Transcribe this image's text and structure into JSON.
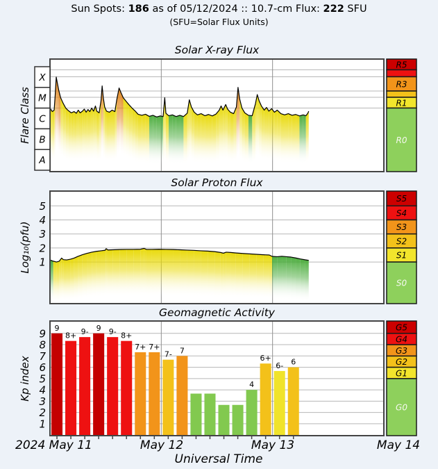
{
  "header": {
    "line1_prefix": "Sun Spots: ",
    "sunspots": "186",
    "line1_mid": " as of 05/12/2024 :: 10.7-cm Flux: ",
    "flux": "222",
    "line1_suffix": " SFU",
    "line2": "(SFU=Solar Flux Units)"
  },
  "time_axis": {
    "labels": [
      {
        "text": "2024 May 11"
      },
      {
        "text": "May 12"
      },
      {
        "text": "May 13"
      },
      {
        "text": "May 14"
      }
    ],
    "axis_label": "Universal Time",
    "hours_total": 72,
    "day_line_hours": [
      24,
      48
    ]
  },
  "colors": {
    "background": "#edf2f8",
    "plot_bg": "#ffffff",
    "border": "#444444",
    "grid": "#b7b7b7",
    "day_line": "#909090",
    "text": "#000000",
    "levels": {
      "5": "#cc0000",
      "4": "#ee1111",
      "3": "#f2941a",
      "2": "#f3c11a",
      "1": "#f2e52c",
      "0": "#8ed05c"
    },
    "bar_palette": {
      "g5": "#c40000",
      "g4": "#ee1111",
      "g3": "#f2941a",
      "g2": "#f3c11a",
      "g1": "#f0e32b",
      "g0": "#82c94f"
    },
    "fill_green": "#46aa37",
    "fill_yellow": "#e8d800",
    "fill_orange": "#e18214"
  },
  "chart_data": [
    {
      "id": "xray",
      "type": "area",
      "title": "Solar X-ray Flux",
      "ylabel": "Flare Class",
      "class_boxes": [
        "X",
        "M",
        "C",
        "B",
        "A"
      ],
      "right_scale_labels": [
        "R5",
        "",
        "R3",
        "",
        "R1",
        "R0"
      ],
      "right_scale_levels": [
        5,
        4,
        3,
        2,
        1,
        0
      ],
      "x_range_hours": [
        0,
        72
      ],
      "y_log10_wm2_range": [
        -8,
        -3
      ],
      "color_thresholds": {
        "orange_above": -4.25,
        "yellow_above": -5.26
      },
      "points_h_log10flux": [
        [
          0,
          -4.95
        ],
        [
          0.5,
          -5.12
        ],
        [
          0.9,
          -5.05
        ],
        [
          1.1,
          -4.4
        ],
        [
          1.35,
          -3.45
        ],
        [
          1.6,
          -3.75
        ],
        [
          1.9,
          -4.1
        ],
        [
          2.3,
          -4.45
        ],
        [
          2.8,
          -4.7
        ],
        [
          3.4,
          -4.95
        ],
        [
          4.0,
          -5.08
        ],
        [
          4.6,
          -5.18
        ],
        [
          5.2,
          -5.12
        ],
        [
          5.7,
          -5.2
        ],
        [
          6.1,
          -5.05
        ],
        [
          6.5,
          -5.18
        ],
        [
          7.0,
          -5.1
        ],
        [
          7.4,
          -5.0
        ],
        [
          7.8,
          -5.15
        ],
        [
          8.2,
          -5.02
        ],
        [
          8.6,
          -5.12
        ],
        [
          9.0,
          -4.95
        ],
        [
          9.4,
          -5.1
        ],
        [
          9.8,
          -4.85
        ],
        [
          10.1,
          -5.1
        ],
        [
          10.6,
          -5.18
        ],
        [
          11.0,
          -4.6
        ],
        [
          11.25,
          -3.88
        ],
        [
          11.5,
          -4.45
        ],
        [
          11.8,
          -4.9
        ],
        [
          12.2,
          -5.1
        ],
        [
          12.8,
          -5.15
        ],
        [
          13.4,
          -5.05
        ],
        [
          14.0,
          -5.12
        ],
        [
          14.4,
          -4.55
        ],
        [
          14.9,
          -3.98
        ],
        [
          15.3,
          -4.2
        ],
        [
          15.8,
          -4.45
        ],
        [
          16.4,
          -4.62
        ],
        [
          17.0,
          -4.78
        ],
        [
          17.7,
          -4.95
        ],
        [
          18.4,
          -5.1
        ],
        [
          19.0,
          -5.25
        ],
        [
          19.8,
          -5.3
        ],
        [
          20.6,
          -5.25
        ],
        [
          21.4,
          -5.35
        ],
        [
          22.2,
          -5.3
        ],
        [
          23.0,
          -5.38
        ],
        [
          23.8,
          -5.33
        ],
        [
          24.4,
          -5.36
        ],
        [
          24.75,
          -4.45
        ],
        [
          25.0,
          -5.2
        ],
        [
          25.6,
          -5.32
        ],
        [
          26.4,
          -5.28
        ],
        [
          27.2,
          -5.36
        ],
        [
          28.0,
          -5.3
        ],
        [
          28.8,
          -5.36
        ],
        [
          29.6,
          -5.2
        ],
        [
          30.05,
          -4.55
        ],
        [
          30.5,
          -4.9
        ],
        [
          31.1,
          -5.15
        ],
        [
          31.8,
          -5.28
        ],
        [
          32.6,
          -5.22
        ],
        [
          33.4,
          -5.32
        ],
        [
          34.2,
          -5.26
        ],
        [
          35.0,
          -5.33
        ],
        [
          35.8,
          -5.24
        ],
        [
          36.5,
          -5.05
        ],
        [
          36.9,
          -4.85
        ],
        [
          37.3,
          -5.05
        ],
        [
          37.9,
          -4.78
        ],
        [
          38.3,
          -5.0
        ],
        [
          38.9,
          -5.15
        ],
        [
          39.6,
          -5.22
        ],
        [
          40.2,
          -4.9
        ],
        [
          40.55,
          -3.95
        ],
        [
          40.9,
          -4.5
        ],
        [
          41.4,
          -4.95
        ],
        [
          42.0,
          -5.18
        ],
        [
          42.8,
          -5.3
        ],
        [
          43.6,
          -5.32
        ],
        [
          44.3,
          -4.75
        ],
        [
          44.7,
          -4.3
        ],
        [
          45.1,
          -4.6
        ],
        [
          45.6,
          -4.85
        ],
        [
          46.2,
          -5.05
        ],
        [
          46.7,
          -4.92
        ],
        [
          47.2,
          -5.1
        ],
        [
          47.8,
          -4.98
        ],
        [
          48.4,
          -5.15
        ],
        [
          49.0,
          -5.05
        ],
        [
          49.8,
          -5.22
        ],
        [
          50.6,
          -5.28
        ],
        [
          51.4,
          -5.22
        ],
        [
          52.2,
          -5.3
        ],
        [
          53.0,
          -5.26
        ],
        [
          53.8,
          -5.33
        ],
        [
          54.6,
          -5.28
        ],
        [
          55.2,
          -5.32
        ],
        [
          55.6,
          -5.2
        ],
        [
          55.8,
          -5.1
        ]
      ]
    },
    {
      "id": "proton",
      "type": "area",
      "title": "Solar Proton Flux",
      "ylabel": "Log₁₀(pfu)",
      "y_ticks": [
        "5",
        "4",
        "3",
        "2",
        "1"
      ],
      "right_scale_labels": [
        "S5",
        "S4",
        "S3",
        "S2",
        "S1",
        "S0"
      ],
      "right_scale_levels": [
        5,
        4,
        3,
        2,
        1,
        0
      ],
      "x_range_hours": [
        0,
        72
      ],
      "color_segments": [
        {
          "to_hour": 1.0,
          "color": "green"
        },
        {
          "to_hour": 47.6,
          "color": "yellow"
        },
        {
          "to_hour": 56.0,
          "color": "green"
        }
      ],
      "points_h_logpfu": [
        [
          0,
          1.15
        ],
        [
          0.7,
          1.06
        ],
        [
          1.4,
          1.0
        ],
        [
          2.0,
          1.06
        ],
        [
          2.5,
          1.28
        ],
        [
          2.9,
          1.17
        ],
        [
          3.6,
          1.15
        ],
        [
          4.4,
          1.2
        ],
        [
          5.2,
          1.28
        ],
        [
          6.0,
          1.4
        ],
        [
          7.0,
          1.52
        ],
        [
          8.0,
          1.62
        ],
        [
          9.0,
          1.7
        ],
        [
          10.0,
          1.76
        ],
        [
          11.0,
          1.8
        ],
        [
          11.9,
          1.84
        ],
        [
          12.1,
          1.95
        ],
        [
          12.5,
          1.86
        ],
        [
          13.5,
          1.87
        ],
        [
          15.0,
          1.89
        ],
        [
          16.5,
          1.9
        ],
        [
          18.0,
          1.9
        ],
        [
          19.5,
          1.91
        ],
        [
          20.3,
          1.97
        ],
        [
          20.8,
          1.9
        ],
        [
          22.0,
          1.9
        ],
        [
          23.5,
          1.91
        ],
        [
          25.0,
          1.9
        ],
        [
          26.5,
          1.89
        ],
        [
          28.0,
          1.87
        ],
        [
          29.5,
          1.85
        ],
        [
          31.0,
          1.83
        ],
        [
          32.5,
          1.8
        ],
        [
          34.0,
          1.78
        ],
        [
          35.5,
          1.74
        ],
        [
          36.8,
          1.68
        ],
        [
          37.4,
          1.63
        ],
        [
          38.0,
          1.7
        ],
        [
          39.0,
          1.68
        ],
        [
          40.0,
          1.65
        ],
        [
          41.5,
          1.61
        ],
        [
          43.0,
          1.58
        ],
        [
          44.5,
          1.55
        ],
        [
          46.0,
          1.52
        ],
        [
          47.3,
          1.5
        ],
        [
          47.9,
          1.4
        ],
        [
          49.0,
          1.38
        ],
        [
          50.0,
          1.41
        ],
        [
          51.0,
          1.38
        ],
        [
          52.0,
          1.35
        ],
        [
          53.0,
          1.29
        ],
        [
          54.0,
          1.22
        ],
        [
          55.0,
          1.16
        ],
        [
          55.8,
          1.12
        ]
      ]
    },
    {
      "id": "kp",
      "type": "bar",
      "title": "Geomagnetic Activity",
      "ylabel": "Kp index",
      "y_ticks": [
        "9",
        "8",
        "7",
        "6",
        "5",
        "4",
        "3",
        "2",
        "1"
      ],
      "right_scale_labels": [
        "G5",
        "G4",
        "G3",
        "G2",
        "G1",
        "G0"
      ],
      "right_scale_levels": [
        5,
        4,
        3,
        2,
        1,
        0
      ],
      "bars": {
        "labels": [
          "9",
          "8+",
          "9-",
          "9",
          "9-",
          "8+",
          "7+",
          "7+",
          "7-",
          "7",
          "",
          "",
          "",
          "",
          "4",
          "6+",
          "6-",
          "6"
        ],
        "values": [
          9,
          8.33,
          8.67,
          9,
          8.67,
          8.33,
          7.33,
          7.33,
          6.67,
          7,
          3.67,
          3.67,
          2.67,
          2.67,
          4,
          6.33,
          5.67,
          6
        ],
        "colors": [
          "g5",
          "g4",
          "g4",
          "g5",
          "g4",
          "g4",
          "g3",
          "g3",
          "g2",
          "g3",
          "g0",
          "g0",
          "g0",
          "g0",
          "g0",
          "g2",
          "g1",
          "g2"
        ],
        "hours_per_bar": 3
      },
      "ylim": [
        0,
        10
      ]
    }
  ]
}
